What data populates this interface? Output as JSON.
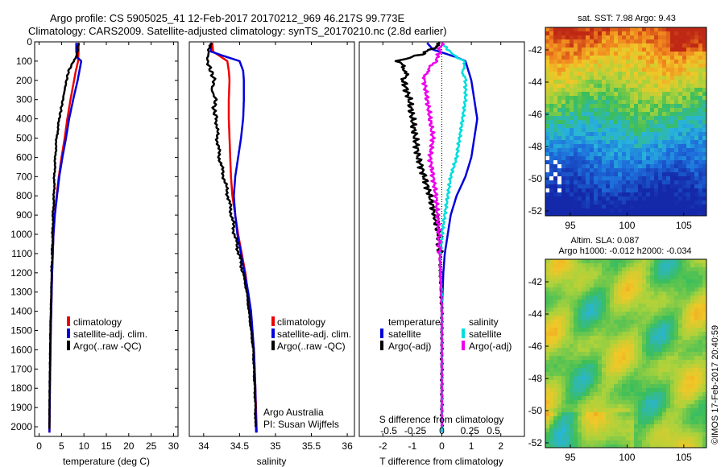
{
  "header": {
    "line1": "Argo profile: CS 5905025_41 12-Feb-2017 20170212_969 46.217S 99.773E",
    "line2": "Climatology: CARS2009. Satellite-adjusted climatology: synTS_20170210.nc (2.8d earlier)"
  },
  "colors": {
    "climatology": "#ee0000",
    "satellite": "#0000dd",
    "argo": "#000000",
    "argo_salinity": "#ee00ee",
    "satellite_salinity": "#00dddd"
  },
  "credits": {
    "argo": "Argo Australia",
    "pi": "PI: Susan Wijffels",
    "imos": "©IMOS 17-Feb-2017 20:40:59"
  },
  "chart_data": [
    {
      "type": "line",
      "panel": "temperature",
      "xlabel": "temperature (deg C)",
      "ylabel": "",
      "xlim": [
        -1,
        31
      ],
      "ylim": [
        2050,
        0
      ],
      "xticks": [
        0,
        5,
        10,
        15,
        20,
        25,
        30
      ],
      "yticks": [
        0,
        100,
        200,
        300,
        400,
        500,
        600,
        700,
        800,
        900,
        1000,
        1100,
        1200,
        1300,
        1400,
        1500,
        1600,
        1700,
        1800,
        1900,
        2000
      ],
      "legend": [
        "climatology",
        "satellite-adj. clim.",
        "Argo(..raw -QC)"
      ],
      "legend_position": "lower-right",
      "series": [
        {
          "name": "climatology",
          "color": "#ee0000",
          "depth": [
            5,
            50,
            100,
            150,
            200,
            300,
            400,
            500,
            600,
            700,
            800,
            900,
            1000,
            1200,
            1500,
            1800,
            2030
          ],
          "values": [
            8.8,
            8.8,
            8.7,
            8.2,
            7.8,
            7.0,
            6.3,
            5.7,
            5.0,
            4.4,
            3.9,
            3.5,
            3.2,
            2.9,
            2.6,
            2.4,
            2.3
          ]
        },
        {
          "name": "satellite-adj. clim.",
          "color": "#0000dd",
          "depth": [
            5,
            50,
            80,
            100,
            150,
            200,
            300,
            400,
            500,
            600,
            700,
            800,
            900,
            1000,
            1200,
            1500,
            1800,
            2030
          ],
          "values": [
            8.3,
            8.3,
            8.5,
            9.4,
            9.0,
            8.6,
            7.6,
            6.7,
            6.0,
            5.2,
            4.5,
            4.0,
            3.5,
            3.2,
            2.9,
            2.6,
            2.4,
            2.3
          ]
        },
        {
          "name": "Argo(..raw -QC)",
          "color": "#000000",
          "depth": [
            5,
            40,
            80,
            100,
            150,
            200,
            250,
            300,
            350,
            400,
            500,
            600,
            700,
            800,
            900,
            1000,
            1100,
            1200,
            1300,
            1400,
            1500,
            1700,
            1900,
            2010
          ],
          "values": [
            8.8,
            8.6,
            8.3,
            7.7,
            6.6,
            6.1,
            5.7,
            5.3,
            4.9,
            4.5,
            3.9,
            3.6,
            3.4,
            3.3,
            3.1,
            3.0,
            2.9,
            2.8,
            2.7,
            2.6,
            2.5,
            2.4,
            2.3,
            2.3
          ]
        }
      ]
    },
    {
      "type": "line",
      "panel": "salinity",
      "xlabel": "salinity",
      "xlim": [
        33.8,
        36.1
      ],
      "ylim": [
        2050,
        0
      ],
      "xticks": [
        34,
        34.5,
        35,
        35.5,
        36
      ],
      "legend": [
        "climatology",
        "satellite-adj. clim.",
        "Argo(..raw -QC)"
      ],
      "legend_position": "lower-right",
      "series": [
        {
          "name": "climatology",
          "color": "#ee0000",
          "depth": [
            5,
            50,
            100,
            150,
            200,
            300,
            400,
            500,
            600,
            700,
            800,
            900,
            1000,
            1100,
            1200,
            1400,
            1600,
            1800,
            2030
          ],
          "values": [
            34.12,
            34.13,
            34.33,
            34.35,
            34.36,
            34.35,
            34.35,
            34.36,
            34.37,
            34.38,
            34.4,
            34.44,
            34.48,
            34.53,
            34.58,
            34.65,
            34.7,
            34.72,
            34.74
          ]
        },
        {
          "name": "satellite-adj. clim.",
          "color": "#0000dd",
          "depth": [
            5,
            50,
            70,
            100,
            150,
            200,
            300,
            400,
            500,
            600,
            700,
            800,
            900,
            1000,
            1100,
            1200,
            1300,
            1400,
            1600,
            1800,
            2030
          ],
          "values": [
            34.1,
            34.1,
            34.25,
            34.5,
            34.55,
            34.56,
            34.56,
            34.55,
            34.52,
            34.48,
            34.44,
            34.42,
            34.44,
            34.47,
            34.52,
            34.57,
            34.62,
            34.66,
            34.7,
            34.72,
            34.73
          ]
        },
        {
          "name": "Argo(..raw -QC)",
          "color": "#000000",
          "depth": [
            5,
            50,
            100,
            150,
            200,
            250,
            300,
            350,
            400,
            500,
            600,
            700,
            800,
            900,
            1000,
            1100,
            1200,
            1300,
            1400,
            1500,
            1600,
            1700,
            1800,
            1900,
            2000
          ],
          "values": [
            34.12,
            34.07,
            34.05,
            34.1,
            34.15,
            34.11,
            34.17,
            34.14,
            34.18,
            34.19,
            34.22,
            34.28,
            34.34,
            34.39,
            34.43,
            34.49,
            34.55,
            34.6,
            34.63,
            34.66,
            34.69,
            34.7,
            34.71,
            34.72,
            34.72
          ]
        }
      ]
    },
    {
      "type": "line",
      "panel": "differences",
      "xlabel": "T difference from climatology",
      "xlabel_top": "S difference from climatology",
      "xlim": [
        -2.8,
        2.8
      ],
      "ylim": [
        2050,
        0
      ],
      "xticks": [
        -2,
        -1,
        0,
        1,
        2
      ],
      "xticklabels_s": [
        "-0.5",
        "-0.25",
        "0",
        "0.25",
        "0.5"
      ],
      "legend_temperature": {
        "title": "temperature",
        "items": [
          "satellite",
          "Argo(-adj)"
        ]
      },
      "legend_salinity": {
        "title": "salinity",
        "items": [
          "satellite",
          "Argo(-adj)"
        ]
      },
      "series": [
        {
          "name": "satellite",
          "group": "temperature",
          "color": "#0000dd",
          "depth": [
            5,
            40,
            80,
            100,
            150,
            200,
            300,
            400,
            500,
            600,
            700,
            800,
            900,
            1000,
            1100,
            1200,
            1400,
            1600,
            1800,
            2030
          ],
          "values": [
            -0.5,
            -0.3,
            0.5,
            0.8,
            0.9,
            1.0,
            1.1,
            1.2,
            1.1,
            1.0,
            0.8,
            0.5,
            0.3,
            0.2,
            0.1,
            0.05,
            0.0,
            0.0,
            0.0,
            0.0
          ]
        },
        {
          "name": "Argo(-adj)",
          "group": "temperature",
          "color": "#000000",
          "depth": [
            5,
            60,
            100,
            150,
            200,
            300,
            400,
            500,
            600,
            700,
            800,
            900,
            1000,
            1100,
            1200,
            1400,
            1600,
            1800,
            2000
          ],
          "values": [
            0.0,
            -0.6,
            -1.5,
            -1.2,
            -1.3,
            -1.1,
            -1.0,
            -0.9,
            -0.8,
            -0.6,
            -0.4,
            -0.25,
            -0.1,
            -0.05,
            -0.05,
            0.0,
            0.0,
            0.0,
            0.0
          ]
        },
        {
          "name": "satellite",
          "group": "salinity",
          "color": "#00dddd",
          "depth": [
            5,
            40,
            80,
            100,
            150,
            200,
            300,
            400,
            500,
            600,
            700,
            800,
            900,
            1000,
            1100,
            1200,
            1300,
            1400,
            1600,
            1800,
            2030
          ],
          "values": [
            0.0,
            0.2,
            0.5,
            0.8,
            0.7,
            0.8,
            0.8,
            0.7,
            0.6,
            0.5,
            0.3,
            0.2,
            0.1,
            0.0,
            -0.05,
            -0.05,
            0.0,
            0.0,
            0.0,
            0.0,
            0.0
          ]
        },
        {
          "name": "Argo(-adj)",
          "group": "salinity",
          "color": "#ee00ee",
          "depth": [
            5,
            60,
            100,
            150,
            200,
            300,
            400,
            500,
            600,
            700,
            800,
            900,
            1000,
            1200,
            1400,
            1600,
            1800,
            2000
          ],
          "values": [
            0.0,
            -0.1,
            -0.2,
            -0.5,
            -0.6,
            -0.5,
            -0.4,
            -0.3,
            -0.4,
            -0.3,
            -0.2,
            -0.15,
            -0.1,
            -0.05,
            0.0,
            0.0,
            0.0,
            0.0
          ]
        }
      ]
    },
    {
      "type": "heatmap",
      "panel": "sst-map",
      "title": "sat. SST: 7.98 Argo: 9.43",
      "xlim": [
        92.8,
        107
      ],
      "ylim": [
        -52.3,
        -40.6
      ],
      "xticks": [
        95,
        100,
        105
      ],
      "yticks": [
        -42,
        -44,
        -46,
        -48,
        -50,
        -52
      ]
    },
    {
      "type": "heatmap",
      "panel": "sla-map",
      "title_line1": "Altim. SLA: 0.087",
      "title_line2": "Argo h1000: -0.012 h2000: -0.034",
      "xlim": [
        92.8,
        107
      ],
      "ylim": [
        -52.3,
        -40.6
      ],
      "xticks": [
        95,
        100,
        105
      ],
      "yticks": [
        -42,
        -44,
        -46,
        -48,
        -50,
        -52
      ]
    }
  ]
}
